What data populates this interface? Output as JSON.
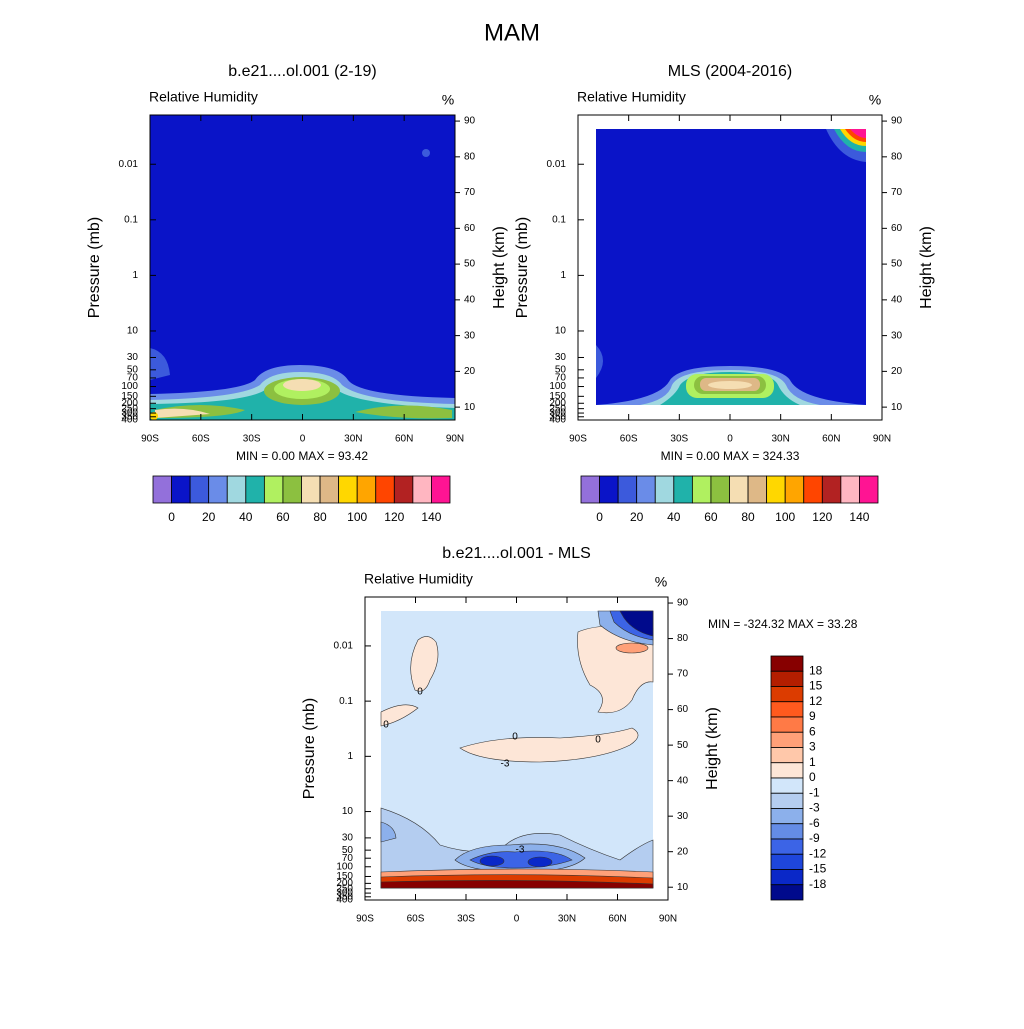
{
  "title": "MAM",
  "chart_data": [
    {
      "type": "contour",
      "title": "b.e21....ol.001 (2-19)",
      "subtitle": "Relative Humidity",
      "units": "%",
      "ylabel": "Pressure (mb)",
      "y2label": "Height (km)",
      "stats": "MIN =   0.00  MAX =  93.42",
      "xlim": [
        -90,
        90
      ],
      "xticks": [
        {
          "value": -90,
          "label": "90S"
        },
        {
          "value": -60,
          "label": "60S"
        },
        {
          "value": -30,
          "label": "30S"
        },
        0,
        {
          "value": 30,
          "label": "30N"
        },
        {
          "value": 60,
          "label": "60N"
        },
        {
          "value": 90,
          "label": "90N"
        }
      ],
      "ylim": [
        0.0013,
        400
      ],
      "y_log": true,
      "yticks": [
        0.01,
        0.1,
        1,
        10,
        30,
        50,
        70,
        100,
        150,
        200,
        250,
        300,
        350,
        400
      ],
      "y2lim": [
        6.4,
        91.7
      ],
      "y2ticks": [
        10,
        20,
        30,
        40,
        50,
        60,
        70,
        80,
        90
      ],
      "colorbar": {
        "orientation": "horizontal",
        "labels": [
          0,
          20,
          40,
          60,
          80,
          100,
          120,
          140
        ],
        "colors": [
          "#9370db",
          "#0a14c8",
          "#3c5adc",
          "#6a8ce8",
          "#a0d8e0",
          "#20b2aa",
          "#b0f060",
          "#8cc040",
          "#f5deb3",
          "#deb887",
          "#ffd700",
          "#ffa500",
          "#ff4500",
          "#b22222",
          "#ffb6c1",
          "#ff1493"
        ]
      }
    },
    {
      "type": "contour",
      "title": "MLS (2004-2016)",
      "subtitle": "Relative Humidity",
      "units": "%",
      "ylabel": "Pressure (mb)",
      "y2label": "Height (km)",
      "stats": "MIN =   0.00  MAX = 324.33",
      "xlim": [
        -90,
        90
      ],
      "xticks": [
        {
          "value": -90,
          "label": "90S"
        },
        {
          "value": -60,
          "label": "60S"
        },
        {
          "value": -30,
          "label": "30S"
        },
        0,
        {
          "value": 30,
          "label": "30N"
        },
        {
          "value": 60,
          "label": "60N"
        },
        {
          "value": 90,
          "label": "90N"
        }
      ],
      "ylim": [
        0.0013,
        400
      ],
      "y_log": true,
      "yticks": [
        0.01,
        0.1,
        1,
        10,
        30,
        50,
        70,
        100,
        150,
        200,
        250,
        300,
        350,
        400
      ],
      "y2lim": [
        6.4,
        91.7
      ],
      "y2ticks": [
        10,
        20,
        30,
        40,
        50,
        60,
        70,
        80,
        90
      ],
      "colorbar": {
        "orientation": "horizontal",
        "labels": [
          0,
          20,
          40,
          60,
          80,
          100,
          120,
          140
        ],
        "colors": [
          "#9370db",
          "#0a14c8",
          "#3c5adc",
          "#6a8ce8",
          "#a0d8e0",
          "#20b2aa",
          "#b0f060",
          "#8cc040",
          "#f5deb3",
          "#deb887",
          "#ffd700",
          "#ffa500",
          "#ff4500",
          "#b22222",
          "#ffb6c1",
          "#ff1493"
        ]
      }
    },
    {
      "type": "contour",
      "title": "b.e21....ol.001 - MLS",
      "subtitle": "Relative Humidity",
      "units": "%",
      "ylabel": "Pressure (mb)",
      "y2label": "Height (km)",
      "stats": "MIN = -324.32  MAX =  33.28",
      "xlim": [
        -90,
        90
      ],
      "xticks": [
        {
          "value": -90,
          "label": "90S"
        },
        {
          "value": -60,
          "label": "60S"
        },
        {
          "value": -30,
          "label": "30S"
        },
        0,
        {
          "value": 30,
          "label": "30N"
        },
        {
          "value": 60,
          "label": "60N"
        },
        {
          "value": 90,
          "label": "90N"
        }
      ],
      "ylim": [
        0.0013,
        400
      ],
      "y_log": true,
      "yticks": [
        0.01,
        0.1,
        1,
        10,
        30,
        50,
        70,
        100,
        150,
        200,
        250,
        300,
        350,
        400
      ],
      "y2lim": [
        6.4,
        91.7
      ],
      "y2ticks": [
        10,
        20,
        30,
        40,
        50,
        60,
        70,
        80,
        90
      ],
      "contour_labels": [
        0,
        0,
        0,
        0,
        -3,
        -3
      ],
      "colorbar": {
        "orientation": "vertical",
        "labels": [
          18,
          15,
          12,
          9,
          6,
          3,
          1,
          0,
          -1,
          -3,
          -6,
          -9,
          -12,
          -15,
          -18
        ],
        "colors": [
          "#870000",
          "#b41e00",
          "#dc3c00",
          "#ff5a1e",
          "#ff7a46",
          "#ffa078",
          "#ffc8aa",
          "#fde6d7",
          "#d2e6fa",
          "#b4cdf0",
          "#8cb0eb",
          "#648ce6",
          "#3c64e6",
          "#1e46dc",
          "#0a28c8",
          "#000a8c"
        ]
      }
    }
  ]
}
